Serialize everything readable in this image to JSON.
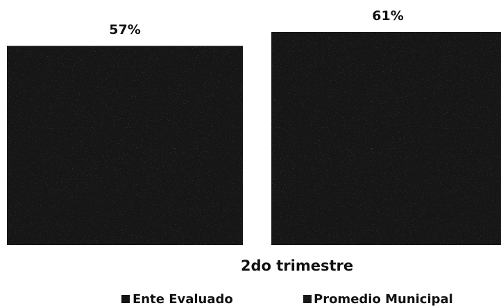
{
  "chart_data": {
    "type": "bar",
    "categories": [
      "2do trimestre"
    ],
    "series": [
      {
        "name": "Ente Evaluado",
        "values": [
          57
        ],
        "label": "57%",
        "color": "#141414"
      },
      {
        "name": "Promedio Municipal",
        "values": [
          61
        ],
        "label": "61%",
        "color": "#181818"
      }
    ],
    "ylim": [
      0,
      61
    ],
    "grid": false,
    "legend_position": "bottom"
  }
}
